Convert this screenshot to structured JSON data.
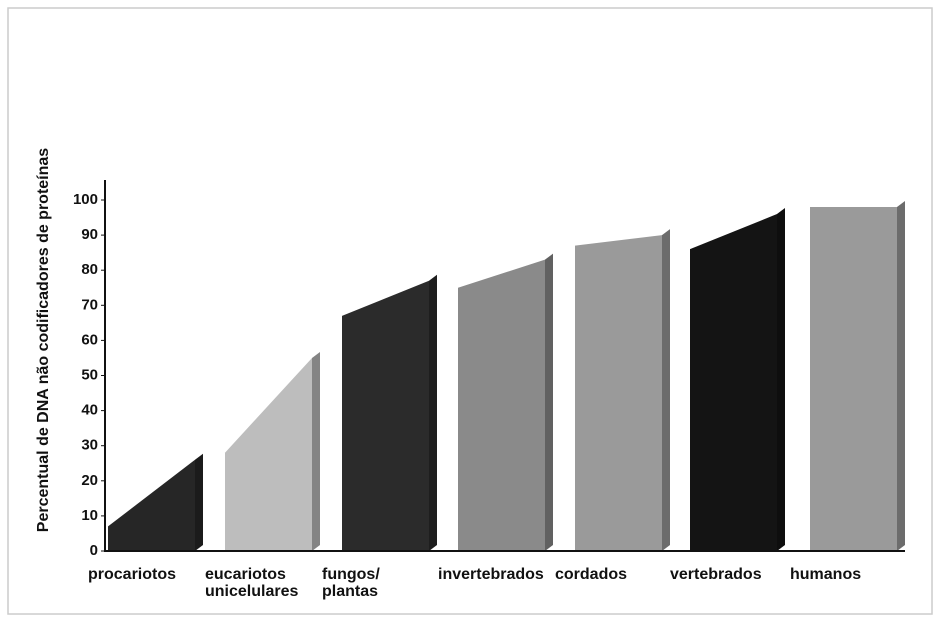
{
  "chart_data": {
    "type": "sloped-bar",
    "y_label": "Percentual de DNA não codificadores de proteínas",
    "categories": [
      "procariotos",
      "eucariotos unicelulares",
      "fungos/ plantas",
      "invertebrados",
      "cordados",
      "vertebrados",
      "humanos"
    ],
    "values": [
      [
        7,
        26
      ],
      [
        28,
        55
      ],
      [
        67,
        77
      ],
      [
        75,
        83
      ],
      [
        87,
        90
      ],
      [
        86,
        96
      ],
      [
        98,
        98
      ]
    ],
    "colors": [
      "#262626",
      "#bdbdbd",
      "#2b2b2b",
      "#8a8a8a",
      "#9a9a9a",
      "#141414",
      "#9a9a9a"
    ],
    "ylim": [
      0,
      100
    ],
    "yticks": [
      0,
      10,
      20,
      30,
      40,
      50,
      60,
      70,
      80,
      90,
      100
    ]
  }
}
